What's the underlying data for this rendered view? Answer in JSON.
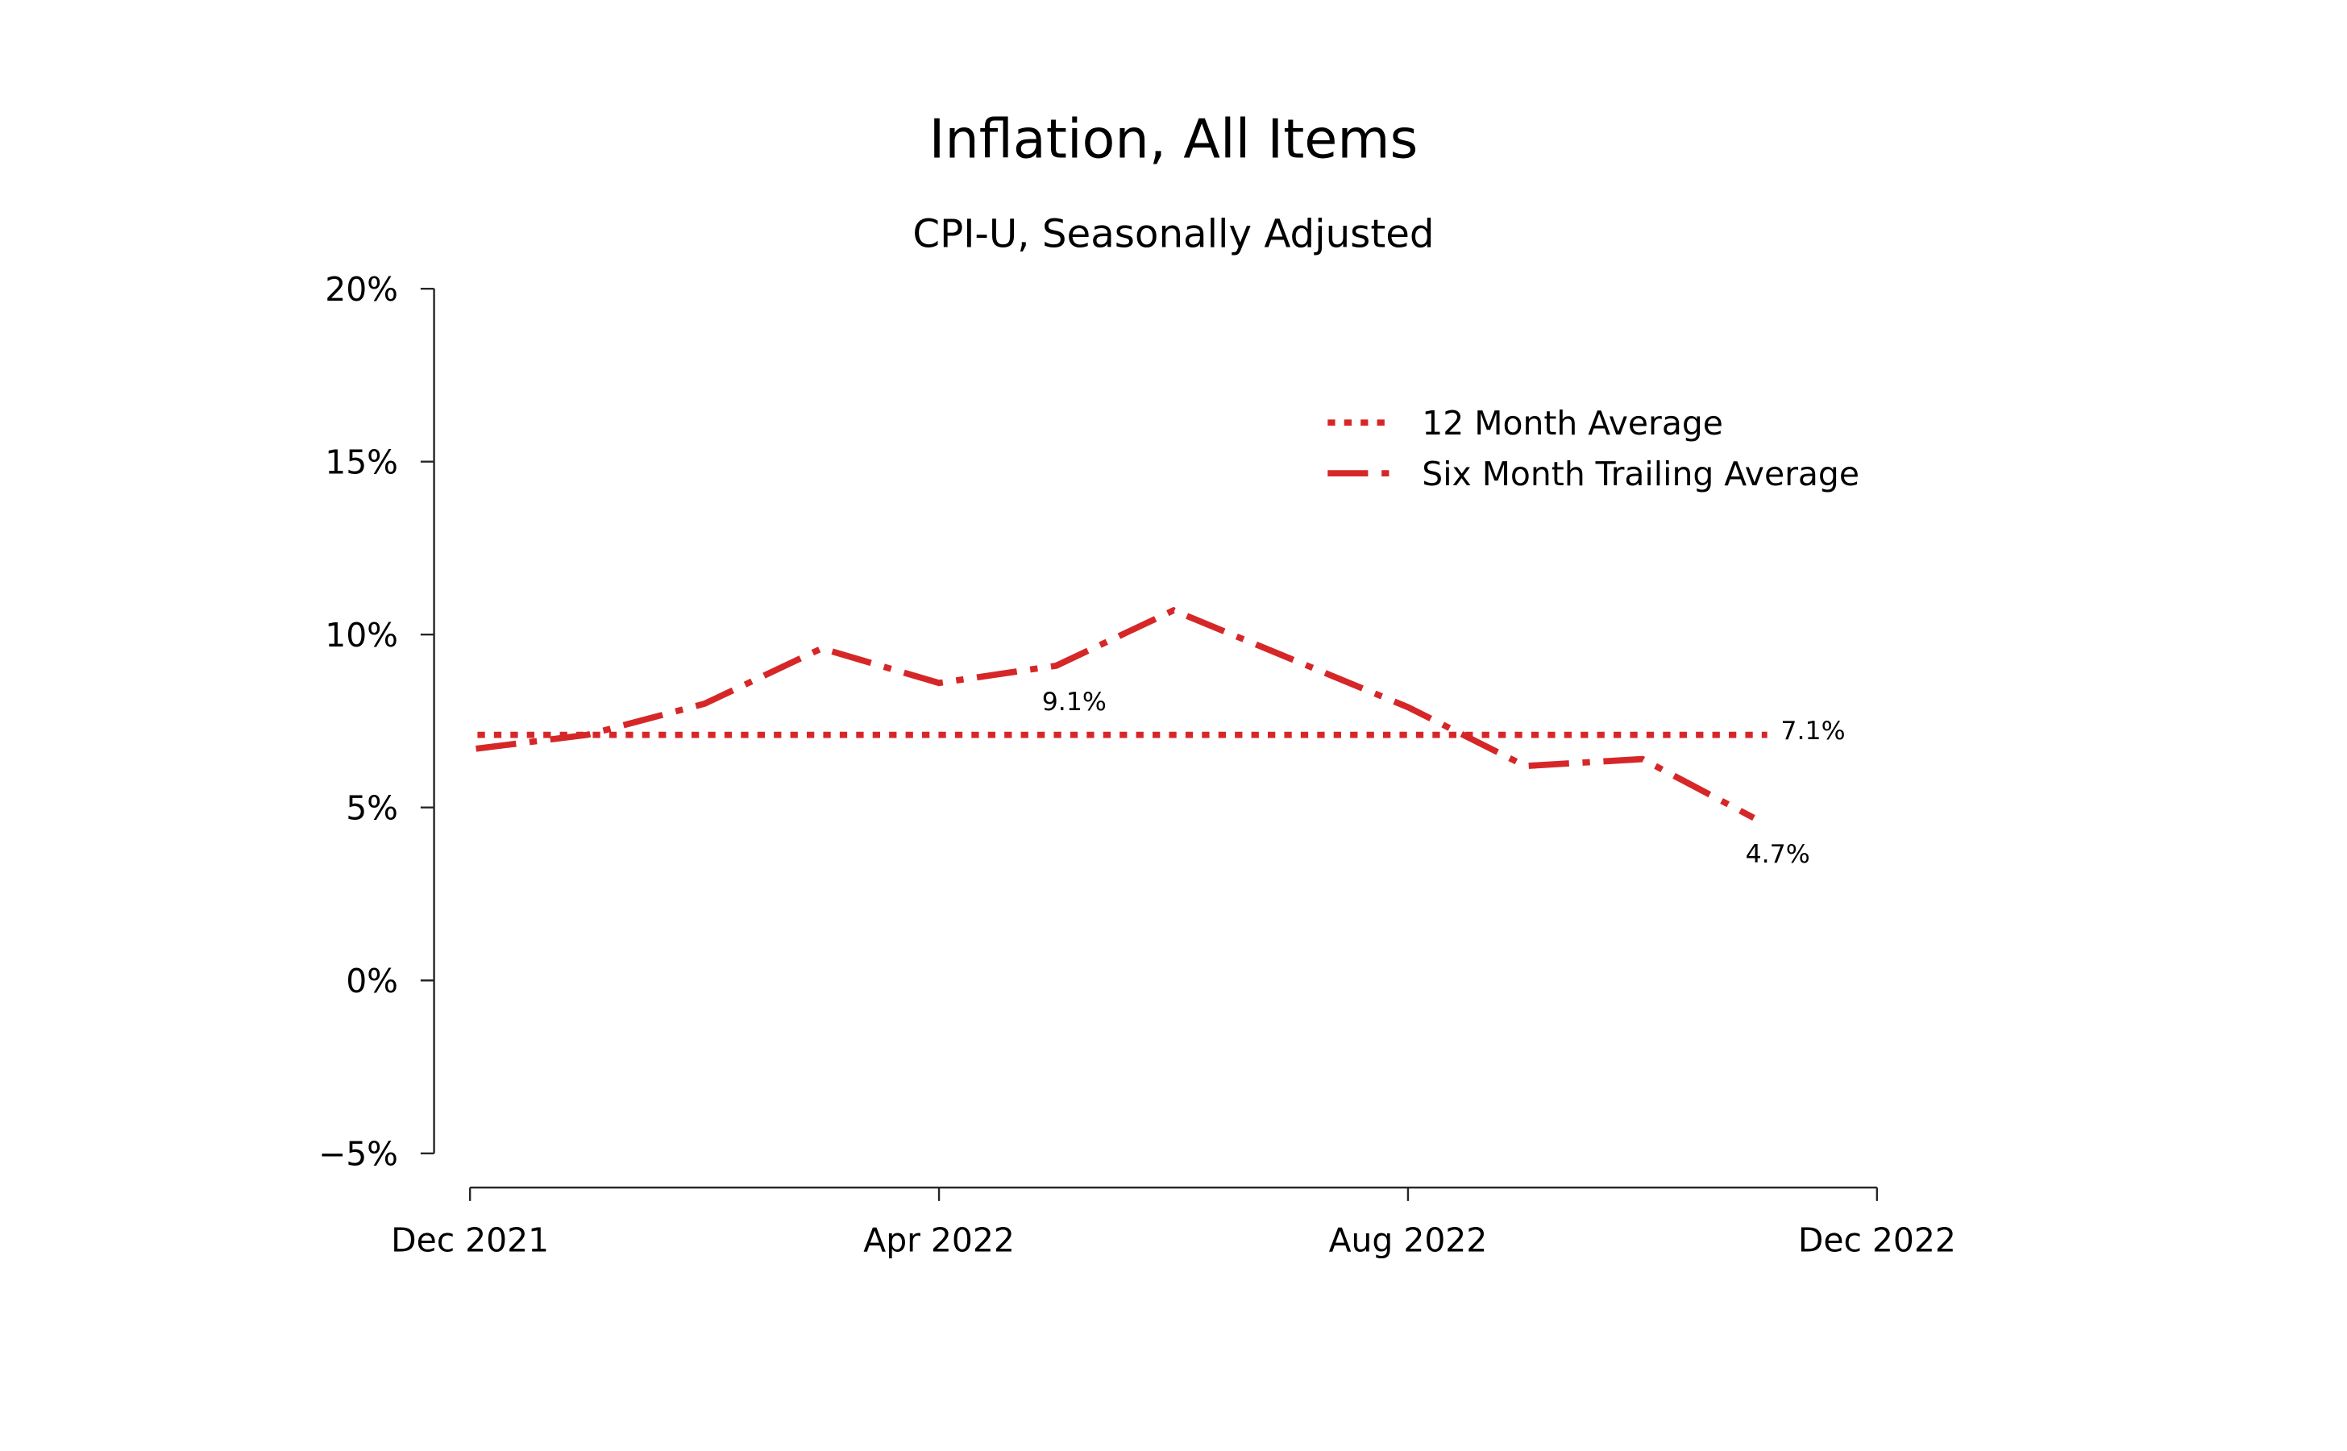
{
  "chart_data": {
    "type": "line",
    "title": "Inflation, All Items",
    "subtitle": "CPI-U, Seasonally Adjusted",
    "xlabel": "",
    "ylabel": "",
    "ylim": [
      -5,
      20
    ],
    "yticks": [
      -5,
      0,
      5,
      10,
      15,
      20
    ],
    "ytick_labels": [
      "−5%",
      "0%",
      "5%",
      "10%",
      "15%",
      "20%"
    ],
    "xlim": [
      "2021-12",
      "2022-12"
    ],
    "xticks": [
      "2021-12",
      "2022-04",
      "2022-08",
      "2022-12"
    ],
    "xtick_labels": [
      "Dec 2021",
      "Apr 2022",
      "Aug 2022",
      "Dec 2022"
    ],
    "grid": false,
    "legend_position": "top-right",
    "x": [
      "2021-12",
      "2022-01",
      "2022-02",
      "2022-03",
      "2022-04",
      "2022-05",
      "2022-06",
      "2022-07",
      "2022-08",
      "2022-09",
      "2022-10",
      "2022-11"
    ],
    "series": [
      {
        "name": "12 Month Average",
        "style": "dotted",
        "color": "#d62728",
        "values": [
          7.1,
          7.1,
          7.1,
          7.1,
          7.1,
          7.1,
          7.1,
          7.1,
          7.1,
          7.1,
          7.1,
          7.1
        ]
      },
      {
        "name": "Six Month Trailing Average",
        "style": "dashdot",
        "color": "#d62728",
        "values": [
          6.7,
          7.1,
          8.0,
          9.6,
          8.6,
          9.1,
          10.7,
          9.3,
          7.9,
          6.2,
          6.4,
          4.7
        ]
      }
    ],
    "annotations": [
      {
        "text": "9.1%",
        "series": 1,
        "index": 5,
        "placement": "below"
      },
      {
        "text": "7.1%",
        "series": 0,
        "index": 11,
        "placement": "right"
      },
      {
        "text": "4.7%",
        "series": 1,
        "index": 11,
        "placement": "below"
      }
    ]
  }
}
